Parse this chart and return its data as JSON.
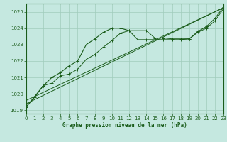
{
  "bg_color": "#c5e8e0",
  "grid_color": "#a0ccbc",
  "line_color": "#1a5c1a",
  "xlabel": "Graphe pression niveau de la mer (hPa)",
  "xlim": [
    0,
    23
  ],
  "ylim": [
    1018.8,
    1025.5
  ],
  "yticks": [
    1019,
    1020,
    1021,
    1022,
    1023,
    1024,
    1025
  ],
  "xticks": [
    0,
    1,
    2,
    3,
    4,
    5,
    6,
    7,
    8,
    9,
    10,
    11,
    12,
    13,
    14,
    15,
    16,
    17,
    18,
    19,
    20,
    21,
    22,
    23
  ],
  "series1": [
    1019.2,
    1019.8,
    1020.5,
    1021.0,
    1021.3,
    1021.7,
    1022.0,
    1023.0,
    1023.35,
    1023.75,
    1024.0,
    1024.0,
    1023.85,
    1023.3,
    1023.3,
    1023.3,
    1023.3,
    1023.3,
    1023.3,
    1023.35,
    1023.8,
    1024.1,
    1024.6,
    1025.3
  ],
  "series2": [
    1019.2,
    1019.85,
    1020.5,
    1020.65,
    1021.1,
    1021.2,
    1021.5,
    1022.1,
    1022.4,
    1022.85,
    1023.25,
    1023.7,
    1023.85,
    1023.85,
    1023.85,
    1023.4,
    1023.4,
    1023.35,
    1023.35,
    1023.35,
    1023.75,
    1024.0,
    1024.45,
    1025.2
  ],
  "series3_x": [
    0,
    23
  ],
  "series3_y": [
    1019.4,
    1025.25
  ],
  "series4_x": [
    0,
    23
  ],
  "series4_y": [
    1019.6,
    1025.25
  ]
}
